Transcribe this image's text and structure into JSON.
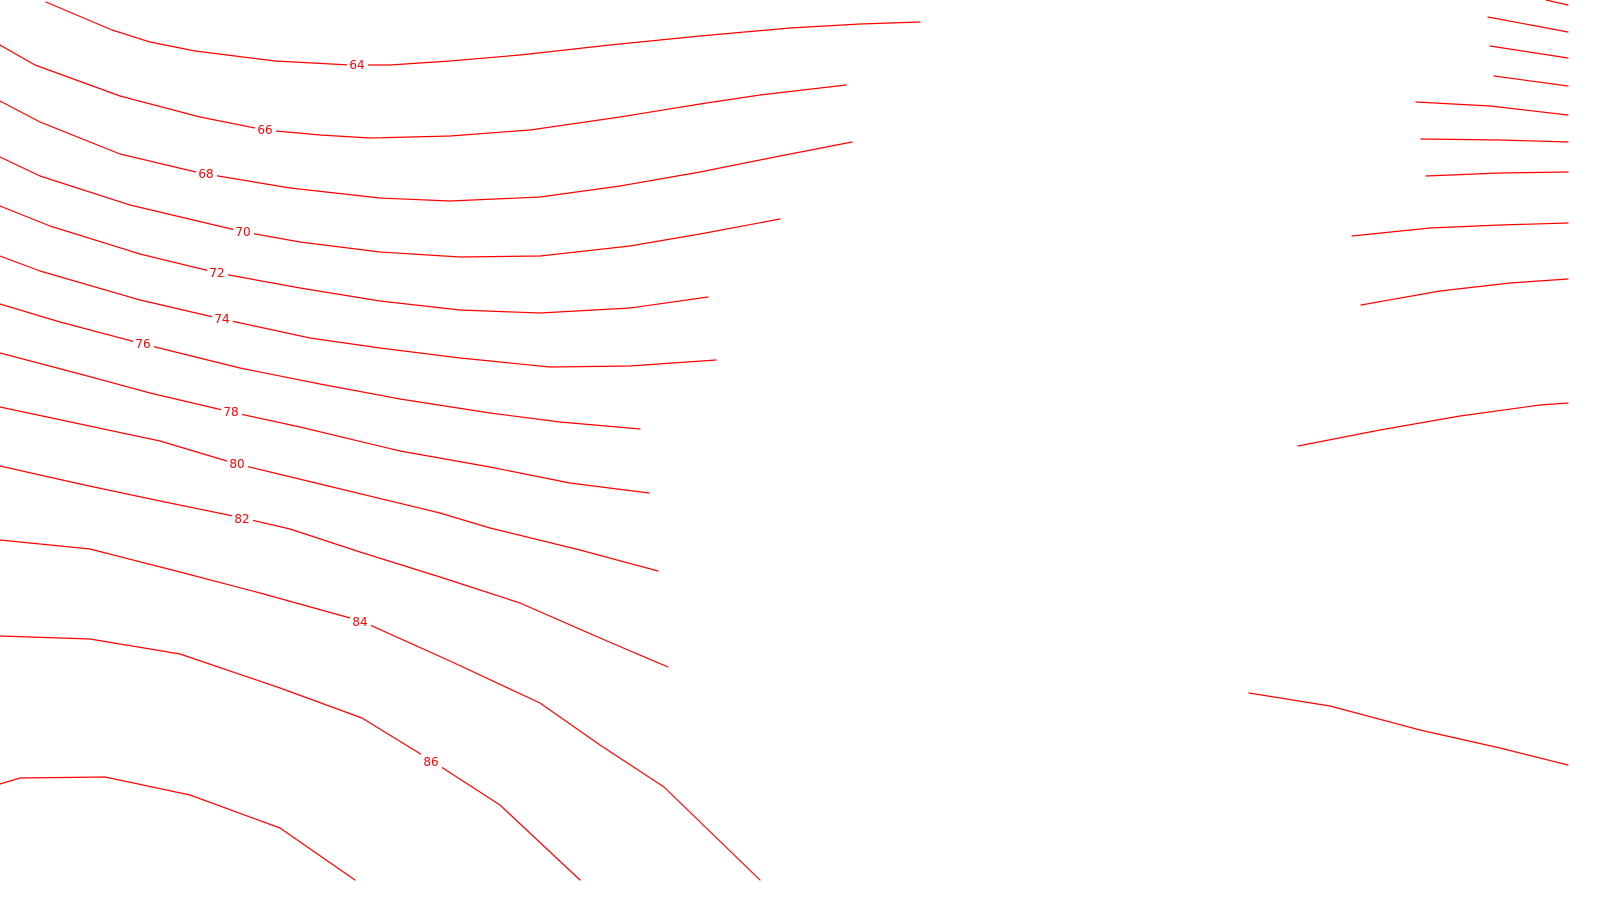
{
  "map": {
    "line_color": "#ff0000",
    "background_color": "#ffffff",
    "contour_labels": [
      "64",
      "66",
      "68",
      "70",
      "72",
      "74",
      "76",
      "78",
      "80",
      "82",
      "84",
      "86"
    ]
  }
}
